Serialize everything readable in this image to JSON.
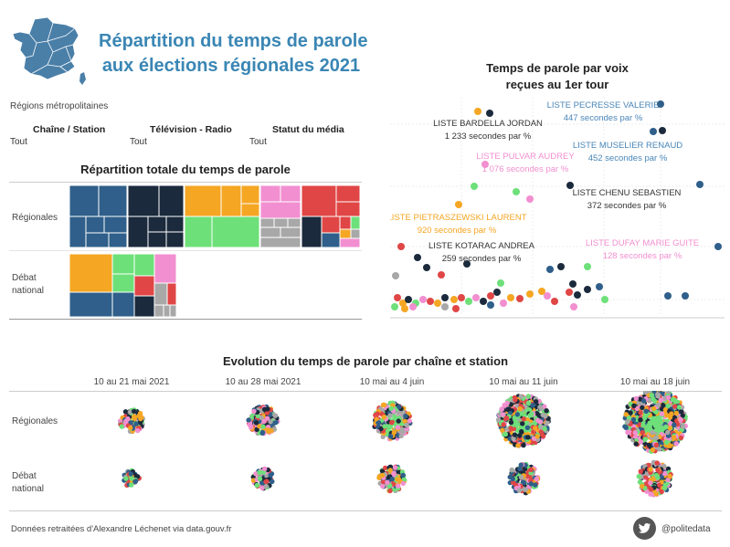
{
  "header": {
    "title_line1": "Répartition du temps de parole",
    "title_line2": "aux élections régionales 2021",
    "region_label": "Régions métropolitaines"
  },
  "filters": [
    {
      "label": "Chaîne / Station",
      "value": "Tout"
    },
    {
      "label": "Télévision - Radio",
      "value": "Tout"
    },
    {
      "label": "Statut du média",
      "value": "Tout"
    }
  ],
  "treemap": {
    "title": "Répartition totale du temps de parole",
    "rows": [
      "Régionales",
      "Débat national"
    ]
  },
  "scatter": {
    "title_line1": "Temps de parole par voix",
    "title_line2": "reçues au 1er tour",
    "annotations": [
      {
        "name": "LISTE PECRESSE VALERIE",
        "value": "447 secondes par %",
        "color": "#4a86b8"
      },
      {
        "name": "LISTE BARDELLA JORDAN",
        "value": "1 233 secondes par %",
        "color": "#333333"
      },
      {
        "name": "LISTE MUSELIER RENAUD",
        "value": "452 secondes par %",
        "color": "#4a86b8"
      },
      {
        "name": "LISTE PULVAR AUDREY",
        "value": "1 076 secondes par %",
        "color": "#f28fd0"
      },
      {
        "name": "LISTE CHENU SEBASTIEN",
        "value": "372 secondes par %",
        "color": "#333333"
      },
      {
        "name": "LISTE PIETRASZEWSKI LAURENT",
        "value": "920 secondes par %",
        "color": "#f5a623"
      },
      {
        "name": "LISTE KOTARAC ANDREA",
        "value": "259 secondes par %",
        "color": "#333333"
      },
      {
        "name": "LISTE DUFAY MARIE GUITE",
        "value": "128 secondes par %",
        "color": "#f28fd0"
      }
    ]
  },
  "evolution": {
    "title": "Evolution du temps de parole par chaîne et station",
    "periods": [
      "10 au 21 mai 2021",
      "10 au 28 mai 2021",
      "10 mai au 4 juin",
      "10 mai au 11 juin",
      "10 mai au 18 juin"
    ],
    "rows": [
      "Régionales",
      "Débat national"
    ]
  },
  "footer": {
    "source": "Données retraitées d'Alexandre Léchenet via data.gouv.fr",
    "twitter_icon": "twitter-icon",
    "handle": "@politedata"
  },
  "colors": {
    "title": "#3a86b4",
    "blue": "#2f5f8a",
    "navy": "#1b2a3c",
    "orange": "#f5a623",
    "green": "#6ee07a",
    "pink": "#f28fd0",
    "red": "#e04646",
    "grey": "#a8a8a8"
  }
}
